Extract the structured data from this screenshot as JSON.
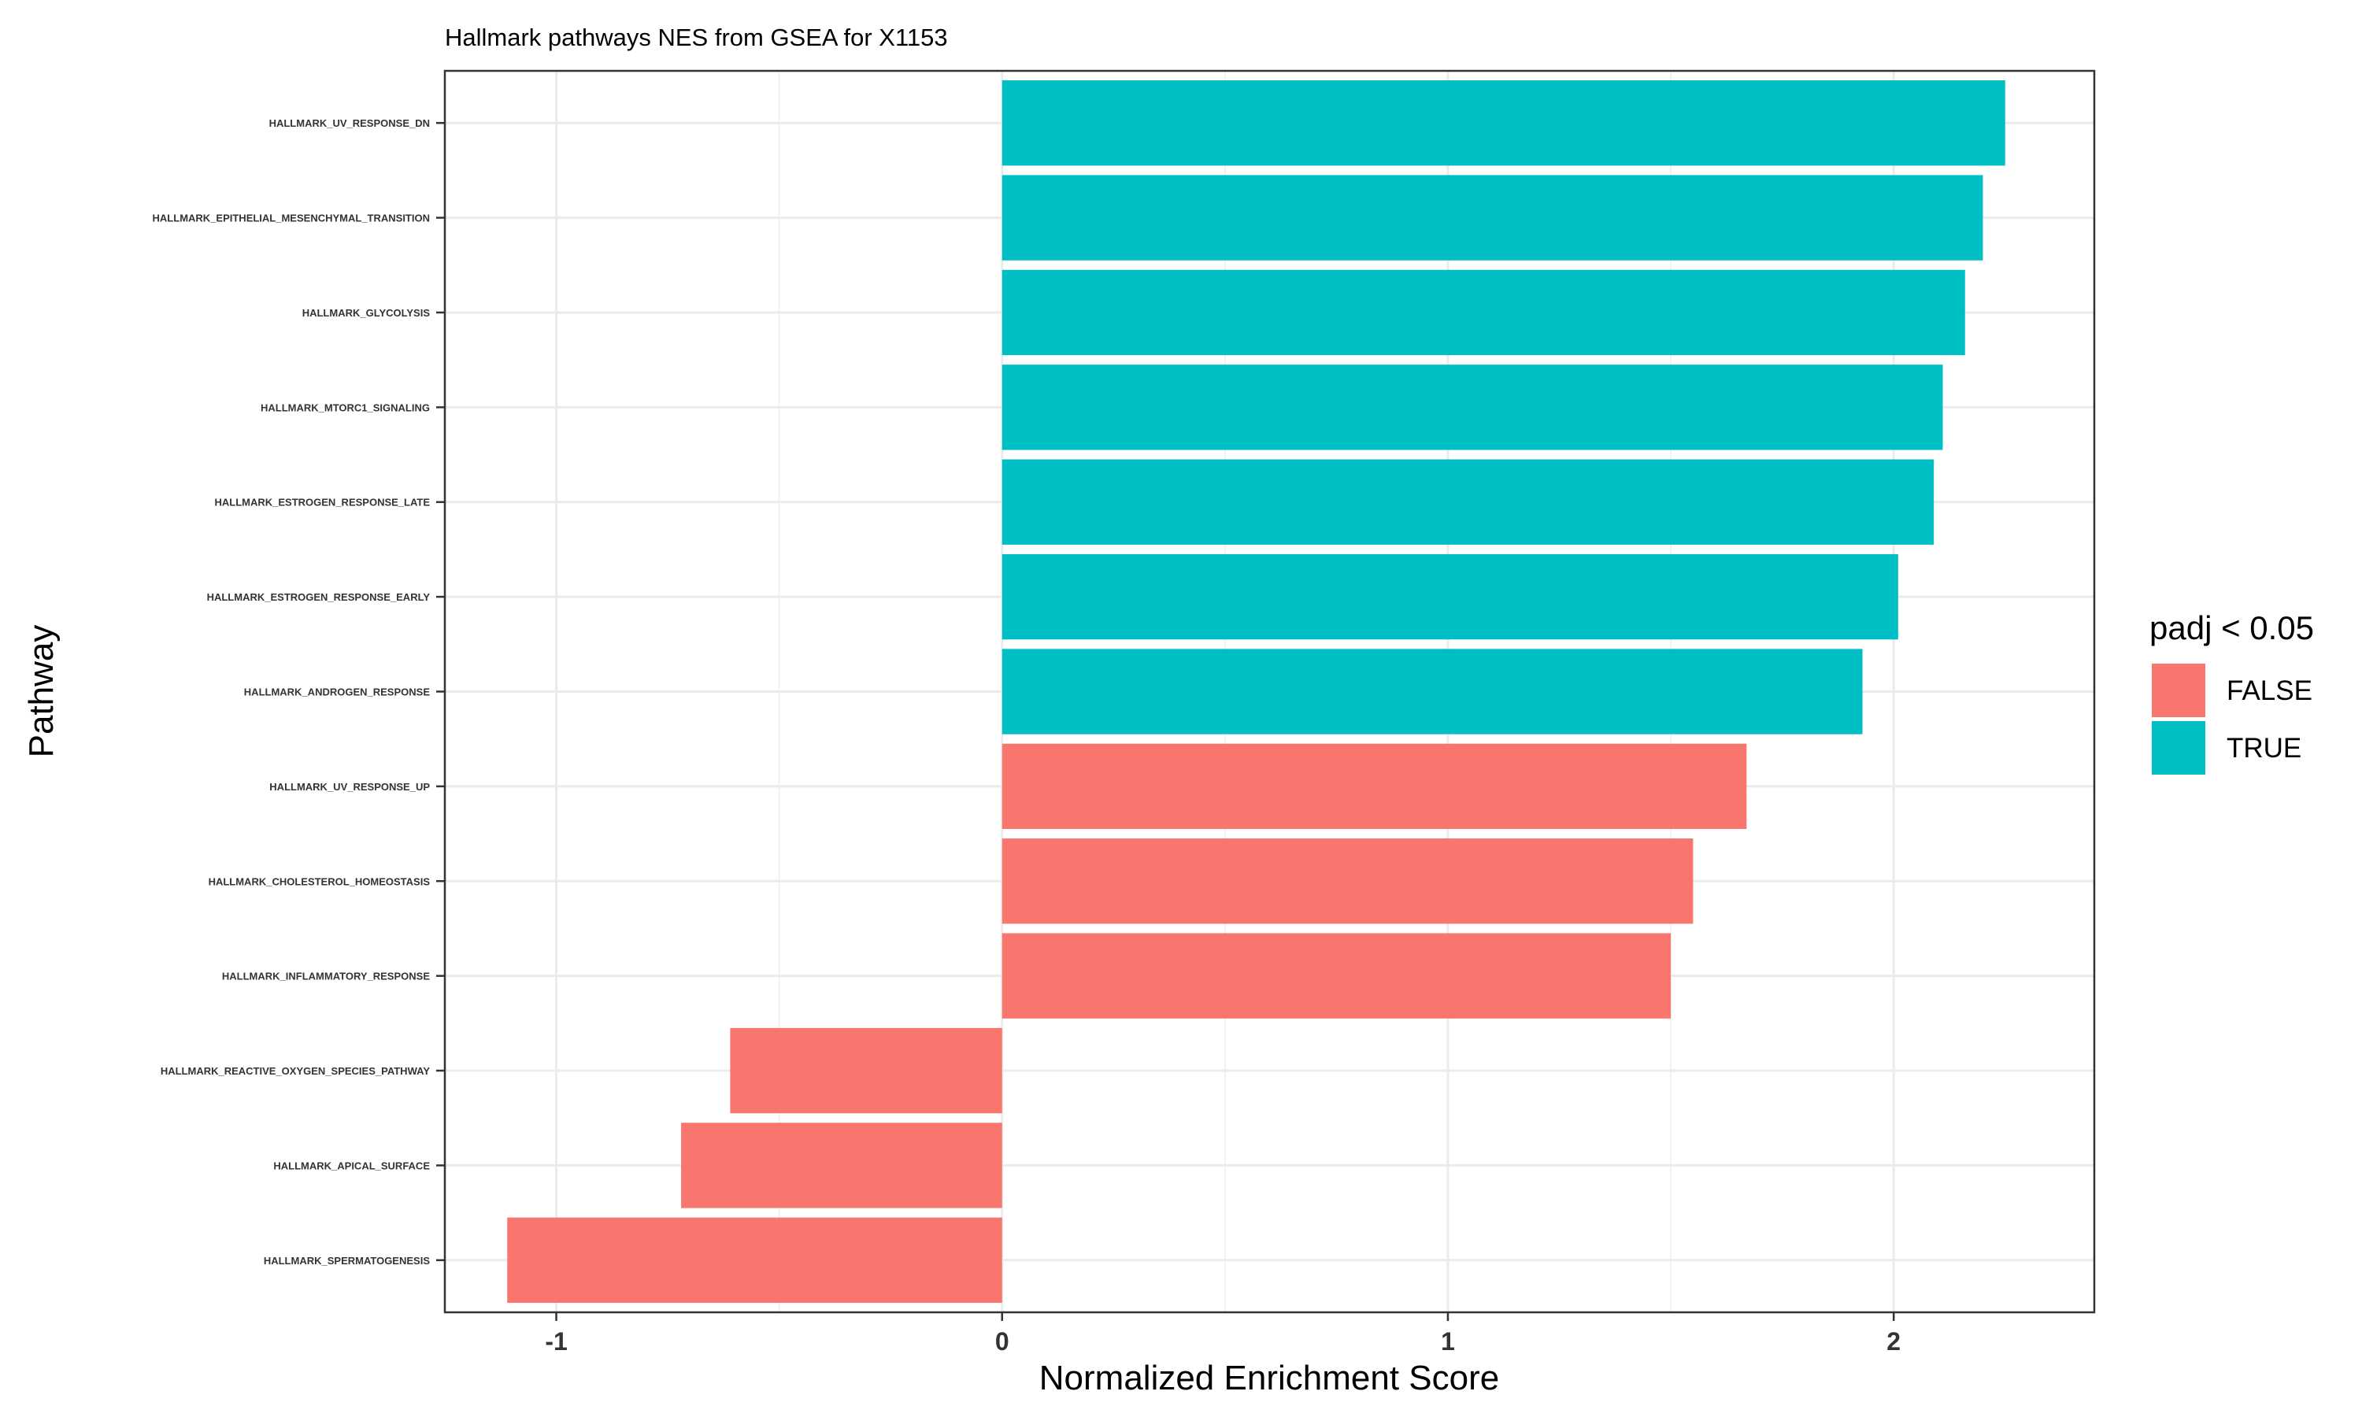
{
  "chart_data": {
    "type": "bar",
    "orientation": "horizontal",
    "title": "Hallmark pathways NES from GSEA for X1153",
    "xlabel": "Normalized Enrichment Score",
    "ylabel": "Pathway",
    "xlim": [
      -1.25,
      2.45
    ],
    "x_ticks": [
      -1,
      0,
      1,
      2
    ],
    "grid": true,
    "legend": {
      "title": "padj < 0.05",
      "position": "right",
      "entries": [
        {
          "label": "FALSE",
          "color": "#F8766D"
        },
        {
          "label": "TRUE",
          "color": "#00BFC4"
        }
      ]
    },
    "categories": [
      "HALLMARK_UV_RESPONSE_DN",
      "HALLMARK_EPITHELIAL_MESENCHYMAL_TRANSITION",
      "HALLMARK_GLYCOLYSIS",
      "HALLMARK_MTORC1_SIGNALING",
      "HALLMARK_ESTROGEN_RESPONSE_LATE",
      "HALLMARK_ESTROGEN_RESPONSE_EARLY",
      "HALLMARK_ANDROGEN_RESPONSE",
      "HALLMARK_UV_RESPONSE_UP",
      "HALLMARK_CHOLESTEROL_HOMEOSTASIS",
      "HALLMARK_INFLAMMATORY_RESPONSE",
      "HALLMARK_REACTIVE_OXYGEN_SPECIES_PATHWAY",
      "HALLMARK_APICAL_SURFACE",
      "HALLMARK_SPERMATOGENESIS"
    ],
    "values": [
      2.25,
      2.2,
      2.16,
      2.11,
      2.09,
      2.01,
      1.93,
      1.67,
      1.55,
      1.5,
      -0.61,
      -0.72,
      -1.11
    ],
    "padj_significant": [
      true,
      true,
      true,
      true,
      true,
      true,
      true,
      false,
      false,
      false,
      false,
      false,
      false
    ]
  }
}
